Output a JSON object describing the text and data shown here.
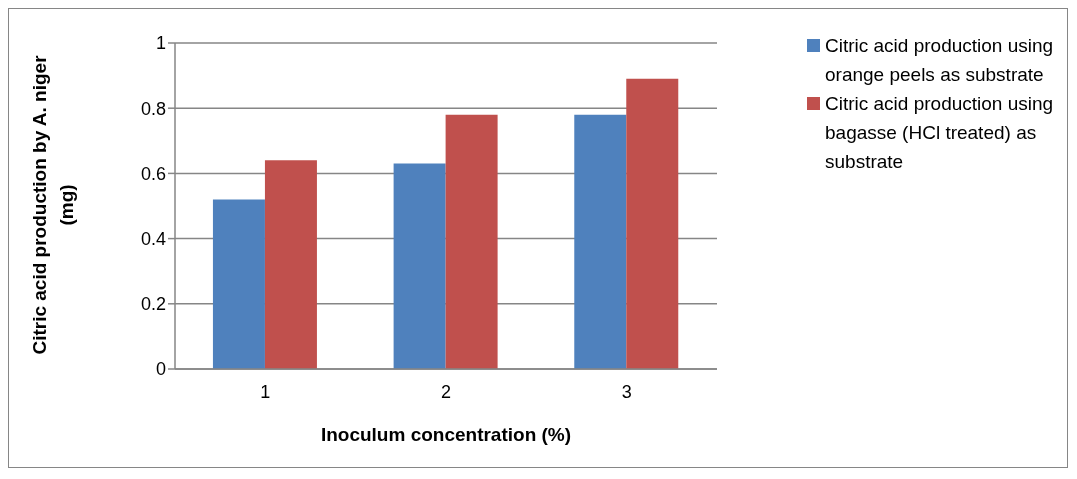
{
  "chart_data": {
    "type": "bar",
    "xlabel": "Inoculum concentration (%)",
    "ylabel": "Citric acid production by A. niger (mg)",
    "categories": [
      "1",
      "2",
      "3"
    ],
    "series": [
      {
        "name": "Citric acid production using orange peels as substrate",
        "color": "#4f81bd",
        "values": [
          0.52,
          0.63,
          0.78
        ]
      },
      {
        "name": "Citric acid production using bagasse (HCl treated) as substrate",
        "color": "#c0504d",
        "values": [
          0.64,
          0.78,
          0.89
        ]
      }
    ],
    "ylim": [
      0,
      1
    ],
    "yticks": [
      0,
      0.2,
      0.4,
      0.6,
      0.8,
      1
    ],
    "grid": "y",
    "legend": "right"
  }
}
